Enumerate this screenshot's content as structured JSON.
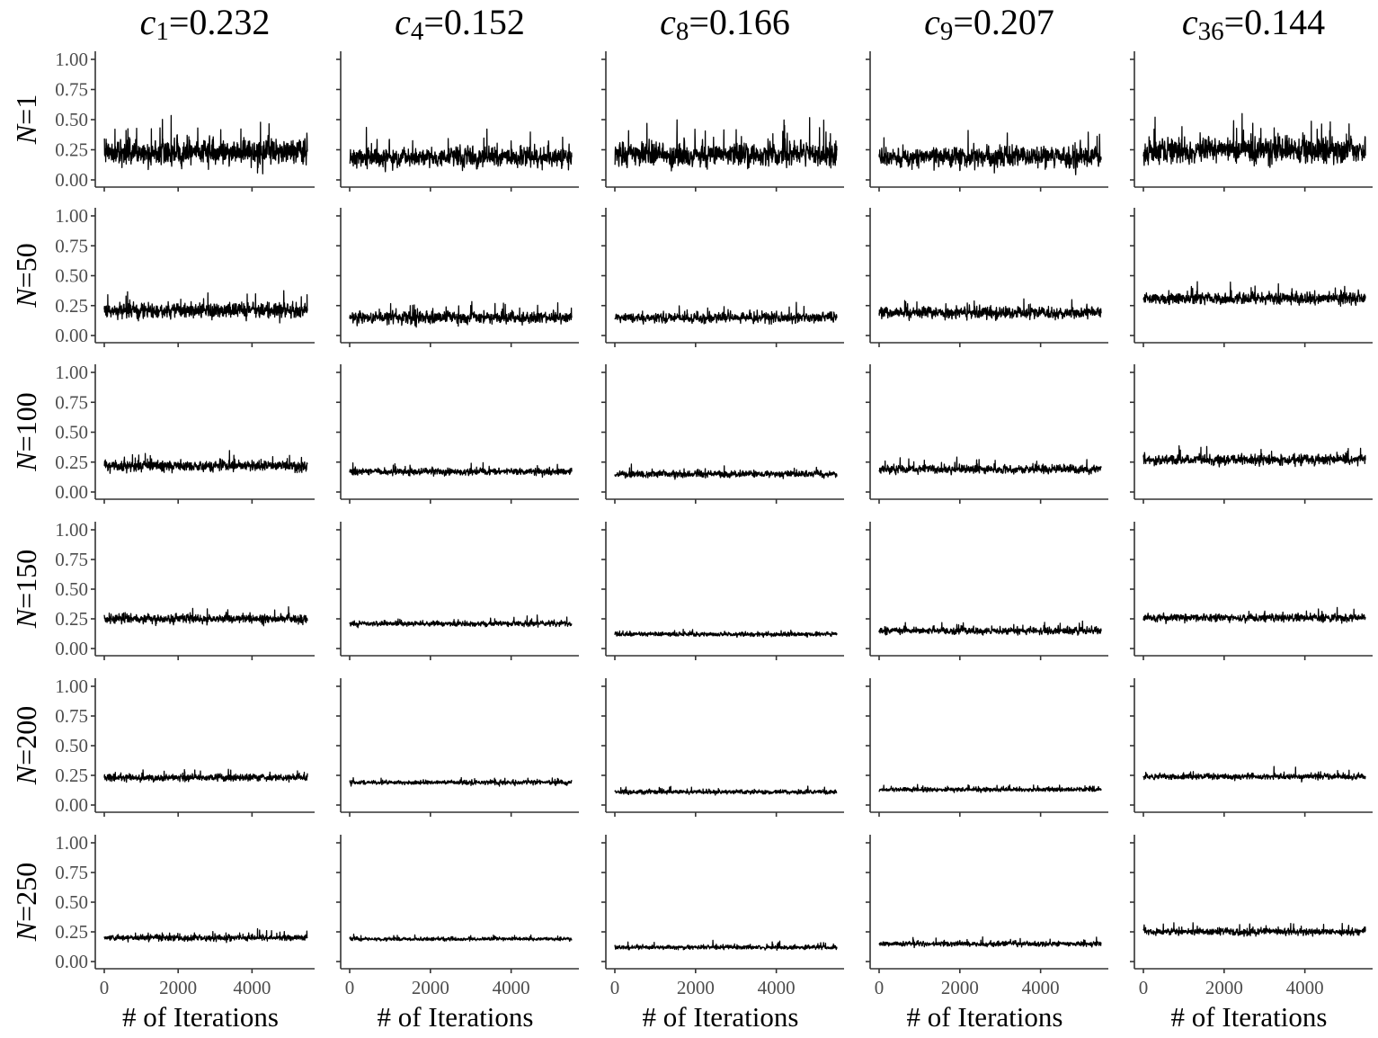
{
  "chart_data": {
    "type": "line",
    "layout": "facet-grid",
    "columns": [
      {
        "symbol": "c",
        "subscript": "1",
        "value_text": "=0.232"
      },
      {
        "symbol": "c",
        "subscript": "4",
        "value_text": "=0.152"
      },
      {
        "symbol": "c",
        "subscript": "8",
        "value_text": "=0.166"
      },
      {
        "symbol": "c",
        "subscript": "9",
        "value_text": "=0.207"
      },
      {
        "symbol": "c",
        "subscript": "36",
        "value_text": "=0.144"
      }
    ],
    "rows": [
      {
        "symbol": "N",
        "value_text": "=1"
      },
      {
        "symbol": "N",
        "value_text": "=50"
      },
      {
        "symbol": "N",
        "value_text": "=100"
      },
      {
        "symbol": "N",
        "value_text": "=150"
      },
      {
        "symbol": "N",
        "value_text": "=200"
      },
      {
        "symbol": "N",
        "value_text": "=250"
      }
    ],
    "xlabel": "# of Iterations",
    "xlim": [
      0,
      5500
    ],
    "xticks": [
      0,
      2000,
      4000
    ],
    "ylim": [
      0,
      1
    ],
    "yticks": [
      0,
      0.25,
      0.5,
      0.75,
      1
    ],
    "ytick_labels": [
      "0.00",
      "0.25",
      "0.50",
      "0.75",
      "1.00"
    ],
    "iterations": 5500,
    "series_color": "#000000",
    "grid": false,
    "trace_summary": [
      [
        {
          "mean": 0.23,
          "spread": 0.15
        },
        {
          "mean": 0.19,
          "spread": 0.12
        },
        {
          "mean": 0.21,
          "spread": 0.14
        },
        {
          "mean": 0.19,
          "spread": 0.12
        },
        {
          "mean": 0.24,
          "spread": 0.15
        }
      ],
      [
        {
          "mean": 0.21,
          "spread": 0.09
        },
        {
          "mean": 0.15,
          "spread": 0.07
        },
        {
          "mean": 0.15,
          "spread": 0.06
        },
        {
          "mean": 0.19,
          "spread": 0.07
        },
        {
          "mean": 0.31,
          "spread": 0.07
        }
      ],
      [
        {
          "mean": 0.22,
          "spread": 0.06
        },
        {
          "mean": 0.17,
          "spread": 0.04
        },
        {
          "mean": 0.15,
          "spread": 0.04
        },
        {
          "mean": 0.19,
          "spread": 0.05
        },
        {
          "mean": 0.27,
          "spread": 0.06
        }
      ],
      [
        {
          "mean": 0.25,
          "spread": 0.05
        },
        {
          "mean": 0.21,
          "spread": 0.03
        },
        {
          "mean": 0.12,
          "spread": 0.025
        },
        {
          "mean": 0.15,
          "spread": 0.04
        },
        {
          "mean": 0.26,
          "spread": 0.045
        }
      ],
      [
        {
          "mean": 0.23,
          "spread": 0.04
        },
        {
          "mean": 0.19,
          "spread": 0.025
        },
        {
          "mean": 0.11,
          "spread": 0.025
        },
        {
          "mean": 0.13,
          "spread": 0.025
        },
        {
          "mean": 0.24,
          "spread": 0.035
        }
      ],
      [
        {
          "mean": 0.2,
          "spread": 0.035
        },
        {
          "mean": 0.19,
          "spread": 0.02
        },
        {
          "mean": 0.12,
          "spread": 0.025
        },
        {
          "mean": 0.15,
          "spread": 0.03
        },
        {
          "mean": 0.25,
          "spread": 0.04
        }
      ]
    ]
  }
}
